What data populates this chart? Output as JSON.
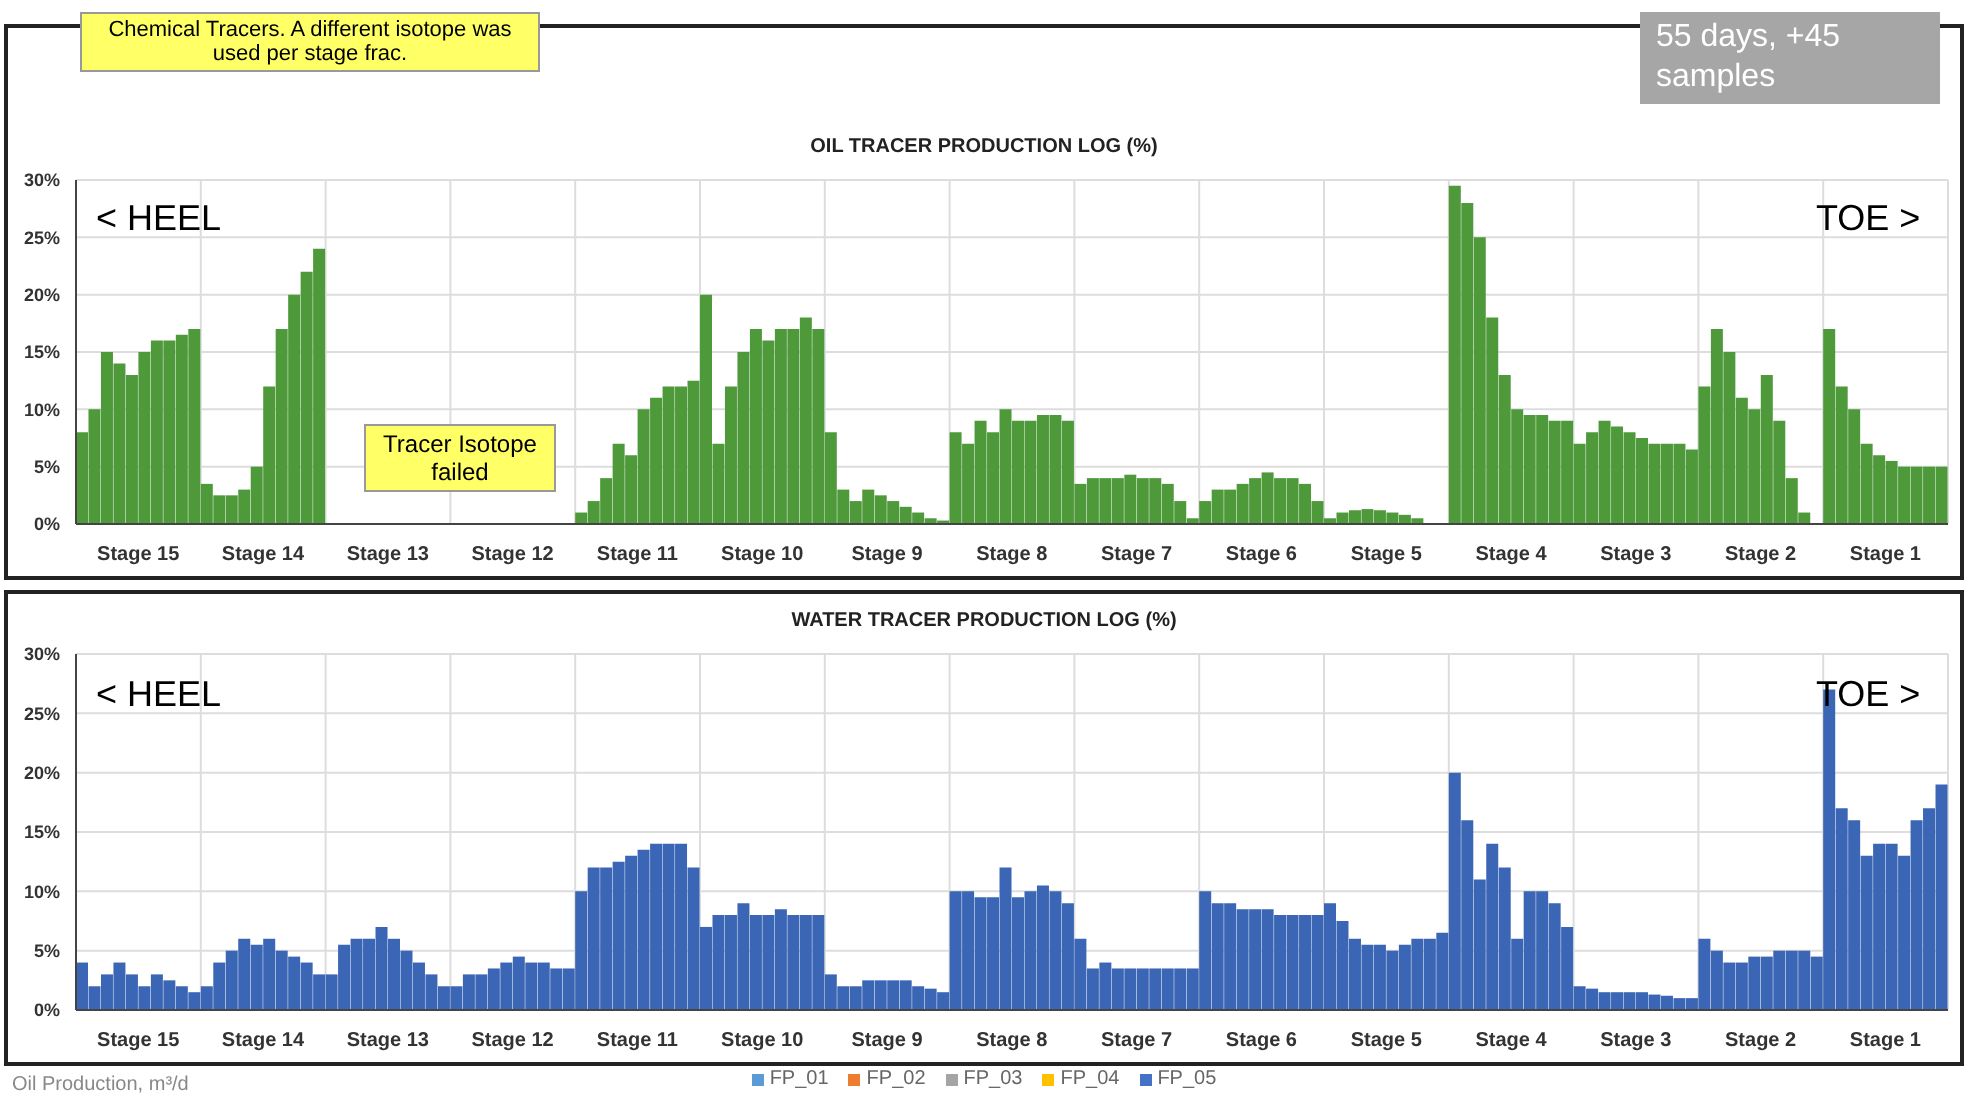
{
  "chart_data": [
    {
      "type": "bar",
      "title": "OIL TRACER PRODUCTION LOG (%)",
      "categories": [
        null,
        null,
        null,
        null,
        "Stage 15",
        null,
        null,
        null,
        null,
        null,
        null,
        null,
        null,
        null,
        "Stage 14",
        null,
        null,
        null,
        null,
        null,
        null,
        null,
        null,
        null,
        "Stage 13",
        null,
        null,
        null,
        null,
        null,
        null,
        null,
        null,
        null,
        "Stage 12",
        null,
        null,
        null,
        null,
        null,
        null,
        null,
        null,
        null,
        "Stage 11",
        null,
        null,
        null,
        null,
        null,
        null,
        null,
        null,
        null,
        "Stage 10",
        null,
        null,
        null,
        null,
        null,
        null,
        null,
        null,
        null,
        "Stage 9",
        null,
        null,
        null,
        null,
        null,
        null,
        null,
        null,
        null,
        "Stage 8",
        null,
        null,
        null,
        null,
        null,
        null,
        null,
        null,
        null,
        "Stage 7",
        null,
        null,
        null,
        null,
        null,
        null,
        null,
        null,
        null,
        "Stage 6",
        null,
        null,
        null,
        null,
        null,
        null,
        null,
        null,
        null,
        "Stage 5",
        null,
        null,
        null,
        null,
        null,
        null,
        null,
        null,
        null,
        "Stage 4",
        null,
        null,
        null,
        null,
        null,
        null,
        null,
        null,
        null,
        "Stage 3",
        null,
        null,
        null,
        null,
        null,
        null,
        null,
        null,
        null,
        "Stage 2",
        null,
        null,
        null,
        null,
        null,
        null,
        null,
        null,
        null,
        "Stage 1",
        null,
        null,
        null,
        null,
        null
      ],
      "series": [
        {
          "color": "#4e9a3a",
          "values": [
            8,
            10,
            15,
            14,
            13,
            15,
            16,
            16,
            16.5,
            17,
            3.5,
            2.5,
            2.5,
            3,
            5,
            12,
            17,
            20,
            22,
            24,
            null,
            null,
            null,
            null,
            null,
            null,
            null,
            null,
            null,
            null,
            null,
            null,
            null,
            null,
            null,
            null,
            null,
            null,
            null,
            null,
            1,
            2,
            4,
            7,
            6,
            10,
            11,
            12,
            12,
            12.5,
            20,
            7,
            12,
            15,
            17,
            16,
            17,
            17,
            18,
            17,
            8,
            3,
            2,
            3,
            2.5,
            2,
            1.5,
            1,
            0.5,
            0.3,
            8,
            7,
            9,
            8,
            10,
            9,
            9,
            9.5,
            9.5,
            9,
            3.5,
            4,
            4,
            4,
            4.3,
            4,
            4,
            3.5,
            2,
            0.5,
            2,
            3,
            3,
            3.5,
            4,
            4.5,
            4,
            4,
            3.5,
            2,
            0.5,
            1,
            1.2,
            1.3,
            1.2,
            1,
            0.8,
            0.5,
            0,
            0,
            29.5,
            28,
            25,
            18,
            13,
            10,
            9.5,
            9.5,
            9,
            9,
            7,
            8,
            9,
            8.5,
            8,
            7.5,
            7,
            7,
            7,
            6.5,
            12,
            17,
            15,
            11,
            10,
            13,
            9,
            4,
            1,
            0,
            17,
            12,
            10,
            7,
            6,
            5.5,
            5,
            5,
            5,
            5
          ]
        }
      ],
      "ylim": [
        0,
        30
      ],
      "yticks": [
        {
          "value": 0,
          "label": "0%"
        },
        {
          "value": 5,
          "label": "5%"
        },
        {
          "value": 10,
          "label": "10%"
        },
        {
          "value": 15,
          "label": "15%"
        },
        {
          "value": 20,
          "label": "20%"
        },
        {
          "value": 25,
          "label": "25%"
        },
        {
          "value": 30,
          "label": "30%"
        }
      ],
      "grid": true,
      "annotations": [
        "Chemical Tracers. A different isotope was used per stage frac.",
        "Tracer Isotope failed",
        "< HEEL",
        "TOE >",
        "55 days, +45 samples"
      ]
    },
    {
      "type": "bar",
      "title": "WATER TRACER PRODUCTION LOG (%)",
      "categories": [
        null,
        null,
        null,
        null,
        "Stage 15",
        null,
        null,
        null,
        null,
        null,
        null,
        null,
        null,
        null,
        "Stage 14",
        null,
        null,
        null,
        null,
        null,
        null,
        null,
        null,
        null,
        "Stage 13",
        null,
        null,
        null,
        null,
        null,
        null,
        null,
        null,
        null,
        "Stage 12",
        null,
        null,
        null,
        null,
        null,
        null,
        null,
        null,
        null,
        "Stage 11",
        null,
        null,
        null,
        null,
        null,
        null,
        null,
        null,
        null,
        "Stage 10",
        null,
        null,
        null,
        null,
        null,
        null,
        null,
        null,
        null,
        "Stage 9",
        null,
        null,
        null,
        null,
        null,
        null,
        null,
        null,
        null,
        "Stage 8",
        null,
        null,
        null,
        null,
        null,
        null,
        null,
        null,
        null,
        "Stage 7",
        null,
        null,
        null,
        null,
        null,
        null,
        null,
        null,
        null,
        "Stage 6",
        null,
        null,
        null,
        null,
        null,
        null,
        null,
        null,
        null,
        "Stage 5",
        null,
        null,
        null,
        null,
        null,
        null,
        null,
        null,
        null,
        "Stage 4",
        null,
        null,
        null,
        null,
        null,
        null,
        null,
        null,
        null,
        "Stage 3",
        null,
        null,
        null,
        null,
        null,
        null,
        null,
        null,
        null,
        "Stage 2",
        null,
        null,
        null,
        null,
        null,
        null,
        null,
        null,
        null,
        "Stage 1",
        null,
        null,
        null,
        null,
        null
      ],
      "series": [
        {
          "color": "#3a66b5",
          "values": [
            4,
            2,
            3,
            4,
            3,
            2,
            3,
            2.5,
            2,
            1.5,
            2,
            4,
            5,
            6,
            5.5,
            6,
            5,
            4.5,
            4,
            3,
            3,
            5.5,
            6,
            6,
            7,
            6,
            5,
            4,
            3,
            2,
            2,
            3,
            3,
            3.5,
            4,
            4.5,
            4,
            4,
            3.5,
            3.5,
            10,
            12,
            12,
            12.5,
            13,
            13.5,
            14,
            14,
            14,
            12,
            7,
            8,
            8,
            9,
            8,
            8,
            8.5,
            8,
            8,
            8,
            3,
            2,
            2,
            2.5,
            2.5,
            2.5,
            2.5,
            2,
            1.8,
            1.5,
            10,
            10,
            9.5,
            9.5,
            12,
            9.5,
            10,
            10.5,
            10,
            9,
            6,
            3.5,
            4,
            3.5,
            3.5,
            3.5,
            3.5,
            3.5,
            3.5,
            3.5,
            10,
            9,
            9,
            8.5,
            8.5,
            8.5,
            8,
            8,
            8,
            8,
            9,
            7.5,
            6,
            5.5,
            5.5,
            5,
            5.5,
            6,
            6,
            6.5,
            20,
            16,
            11,
            14,
            12,
            6,
            10,
            10,
            9,
            7,
            2,
            1.8,
            1.5,
            1.5,
            1.5,
            1.5,
            1.3,
            1.2,
            1,
            1,
            6,
            5,
            4,
            4,
            4.5,
            4.5,
            5,
            5,
            5,
            4.5,
            27,
            17,
            16,
            13,
            14,
            14,
            13,
            16,
            17,
            19
          ]
        },
        {
          "name": "FP_01",
          "color": "#5b9bd5",
          "values": [
            null,
            null,
            null,
            null,
            null,
            null,
            null,
            null,
            null,
            null,
            null,
            null,
            null,
            null,
            null,
            null,
            null,
            null,
            null,
            null,
            null,
            null,
            null,
            null,
            null,
            null,
            null,
            null,
            null,
            null,
            null,
            null,
            null,
            null,
            null,
            null,
            null,
            null,
            null,
            null,
            null,
            null,
            null,
            null,
            null,
            null,
            null,
            null,
            null,
            null,
            null,
            null,
            null,
            null,
            null,
            null,
            null,
            null,
            null,
            null,
            null,
            null,
            null,
            null,
            null,
            null,
            null,
            null,
            null,
            null,
            null,
            null,
            null,
            null,
            null,
            null,
            null,
            null,
            null,
            null,
            null,
            null,
            null,
            null,
            null,
            null,
            null,
            null,
            null,
            null,
            null,
            null,
            null,
            null,
            null,
            null,
            null,
            null,
            null,
            null,
            null,
            null,
            null,
            null,
            null,
            null,
            null,
            null,
            null,
            null,
            null,
            null,
            null,
            null,
            null,
            null,
            null,
            null,
            null,
            null,
            null,
            null,
            null,
            null,
            null,
            null,
            null,
            null,
            null,
            null,
            null,
            null,
            null,
            null,
            null,
            null,
            null,
            null,
            null,
            null,
            null,
            null,
            null,
            null,
            null,
            null,
            null,
            null,
            null,
            null
          ]
        },
        {
          "name": "FP_02",
          "color": "#ed7d31",
          "values": [
            null,
            null,
            null,
            null,
            null,
            null,
            null,
            null,
            null,
            null,
            null,
            null,
            null,
            null,
            null,
            null,
            null,
            null,
            null,
            null,
            null,
            null,
            null,
            null,
            null,
            null,
            null,
            null,
            null,
            null,
            null,
            null,
            null,
            null,
            null,
            null,
            null,
            null,
            null,
            null,
            null,
            null,
            null,
            null,
            null,
            null,
            null,
            null,
            null,
            null,
            null,
            null,
            null,
            null,
            null,
            null,
            null,
            null,
            null,
            null,
            null,
            null,
            null,
            null,
            null,
            null,
            null,
            null,
            null,
            null,
            null,
            null,
            null,
            null,
            null,
            null,
            null,
            null,
            null,
            null,
            null,
            null,
            null,
            null,
            null,
            null,
            null,
            null,
            null,
            null,
            null,
            null,
            null,
            null,
            null,
            null,
            null,
            null,
            null,
            null,
            null,
            null,
            null,
            null,
            null,
            null,
            null,
            null,
            null,
            null,
            null,
            null,
            null,
            null,
            null,
            null,
            null,
            null,
            null,
            null,
            null,
            null,
            null,
            null,
            null,
            null,
            null,
            null,
            null,
            null,
            null,
            null,
            null,
            null,
            null,
            null,
            null,
            null,
            null,
            null,
            null,
            null,
            null,
            null,
            null,
            null,
            null,
            null,
            null,
            null
          ]
        },
        {
          "name": "FP_03",
          "color": "#a5a5a5",
          "values": [
            null,
            null,
            null,
            null,
            null,
            null,
            null,
            null,
            null,
            null,
            null,
            null,
            null,
            null,
            null,
            null,
            null,
            null,
            null,
            null,
            null,
            null,
            null,
            null,
            null,
            null,
            null,
            null,
            null,
            null,
            null,
            null,
            null,
            null,
            null,
            null,
            null,
            null,
            null,
            null,
            null,
            null,
            null,
            null,
            null,
            null,
            null,
            null,
            null,
            null,
            null,
            null,
            null,
            null,
            null,
            null,
            null,
            null,
            null,
            null,
            null,
            null,
            null,
            null,
            null,
            null,
            null,
            null,
            null,
            null,
            null,
            null,
            null,
            null,
            null,
            null,
            null,
            null,
            null,
            null,
            null,
            null,
            null,
            null,
            null,
            null,
            null,
            null,
            null,
            null,
            null,
            null,
            null,
            null,
            null,
            null,
            null,
            null,
            null,
            null,
            null,
            null,
            null,
            null,
            null,
            null,
            null,
            null,
            null,
            null,
            null,
            null,
            null,
            null,
            null,
            null,
            null,
            null,
            null,
            null,
            null,
            null,
            null,
            null,
            null,
            null,
            null,
            null,
            null,
            null,
            null,
            null,
            null,
            null,
            null,
            null,
            null,
            null,
            null,
            null,
            null,
            null,
            null,
            null,
            null,
            null,
            null,
            null,
            null,
            null
          ]
        },
        {
          "name": "FP_04",
          "color": "#ffc000",
          "values": [
            null,
            null,
            null,
            null,
            null,
            null,
            null,
            null,
            null,
            null,
            null,
            null,
            null,
            null,
            null,
            null,
            null,
            null,
            null,
            null,
            null,
            null,
            null,
            null,
            null,
            null,
            null,
            null,
            null,
            null,
            null,
            null,
            null,
            null,
            null,
            null,
            null,
            null,
            null,
            null,
            null,
            null,
            null,
            null,
            null,
            null,
            null,
            null,
            null,
            null,
            null,
            null,
            null,
            null,
            null,
            null,
            null,
            null,
            null,
            null,
            null,
            null,
            null,
            null,
            null,
            null,
            null,
            null,
            null,
            null,
            null,
            null,
            null,
            null,
            null,
            null,
            null,
            null,
            null,
            null,
            null,
            null,
            null,
            null,
            null,
            null,
            null,
            null,
            null,
            null,
            null,
            null,
            null,
            null,
            null,
            null,
            null,
            null,
            null,
            null,
            null,
            null,
            null,
            null,
            null,
            null,
            null,
            null,
            null,
            null,
            null,
            null,
            null,
            null,
            null,
            null,
            null,
            null,
            null,
            null,
            null,
            null,
            null,
            null,
            null,
            null,
            null,
            null,
            null,
            null,
            null,
            null,
            null,
            null,
            null,
            null,
            null,
            null,
            null,
            null,
            null,
            null,
            null,
            null,
            null,
            null,
            null,
            null,
            null,
            null
          ]
        },
        {
          "name": "FP_05",
          "color": "#4472c4",
          "values": [
            null,
            null,
            null,
            null,
            null,
            null,
            null,
            null,
            null,
            null,
            null,
            null,
            null,
            null,
            null,
            null,
            null,
            null,
            null,
            null,
            null,
            null,
            null,
            null,
            null,
            null,
            null,
            null,
            null,
            null,
            null,
            null,
            null,
            null,
            null,
            null,
            null,
            null,
            null,
            null,
            null,
            null,
            null,
            null,
            null,
            null,
            null,
            null,
            null,
            null,
            null,
            null,
            null,
            null,
            null,
            null,
            null,
            null,
            null,
            null,
            null,
            null,
            null,
            null,
            null,
            null,
            null,
            null,
            null,
            null,
            null,
            null,
            null,
            null,
            null,
            null,
            null,
            null,
            null,
            null,
            null,
            null,
            null,
            null,
            null,
            null,
            null,
            null,
            null,
            null,
            null,
            null,
            null,
            null,
            null,
            null,
            null,
            null,
            null,
            null,
            null,
            null,
            null,
            null,
            null,
            null,
            null,
            null,
            null,
            null,
            null,
            null,
            null,
            null,
            null,
            null,
            null,
            null,
            null,
            null,
            null,
            null,
            null,
            null,
            null,
            null,
            null,
            null,
            null,
            null,
            null,
            null,
            null,
            null,
            null,
            null,
            null,
            null,
            null,
            null,
            null,
            null,
            null,
            null,
            null,
            null,
            null,
            null,
            null,
            null
          ]
        }
      ],
      "ylim": [
        0,
        30
      ],
      "yticks": [
        {
          "value": 0,
          "label": "0%"
        },
        {
          "value": 5,
          "label": "5%"
        },
        {
          "value": 10,
          "label": "10%"
        },
        {
          "value": 15,
          "label": "15%"
        },
        {
          "value": 20,
          "label": "20%"
        },
        {
          "value": 25,
          "label": "25%"
        },
        {
          "value": 30,
          "label": "30%"
        }
      ],
      "grid": true,
      "legend": "bottom",
      "annotations": [
        "< HEEL",
        "TOE >",
        "Oil Production, m³/d"
      ]
    }
  ]
}
